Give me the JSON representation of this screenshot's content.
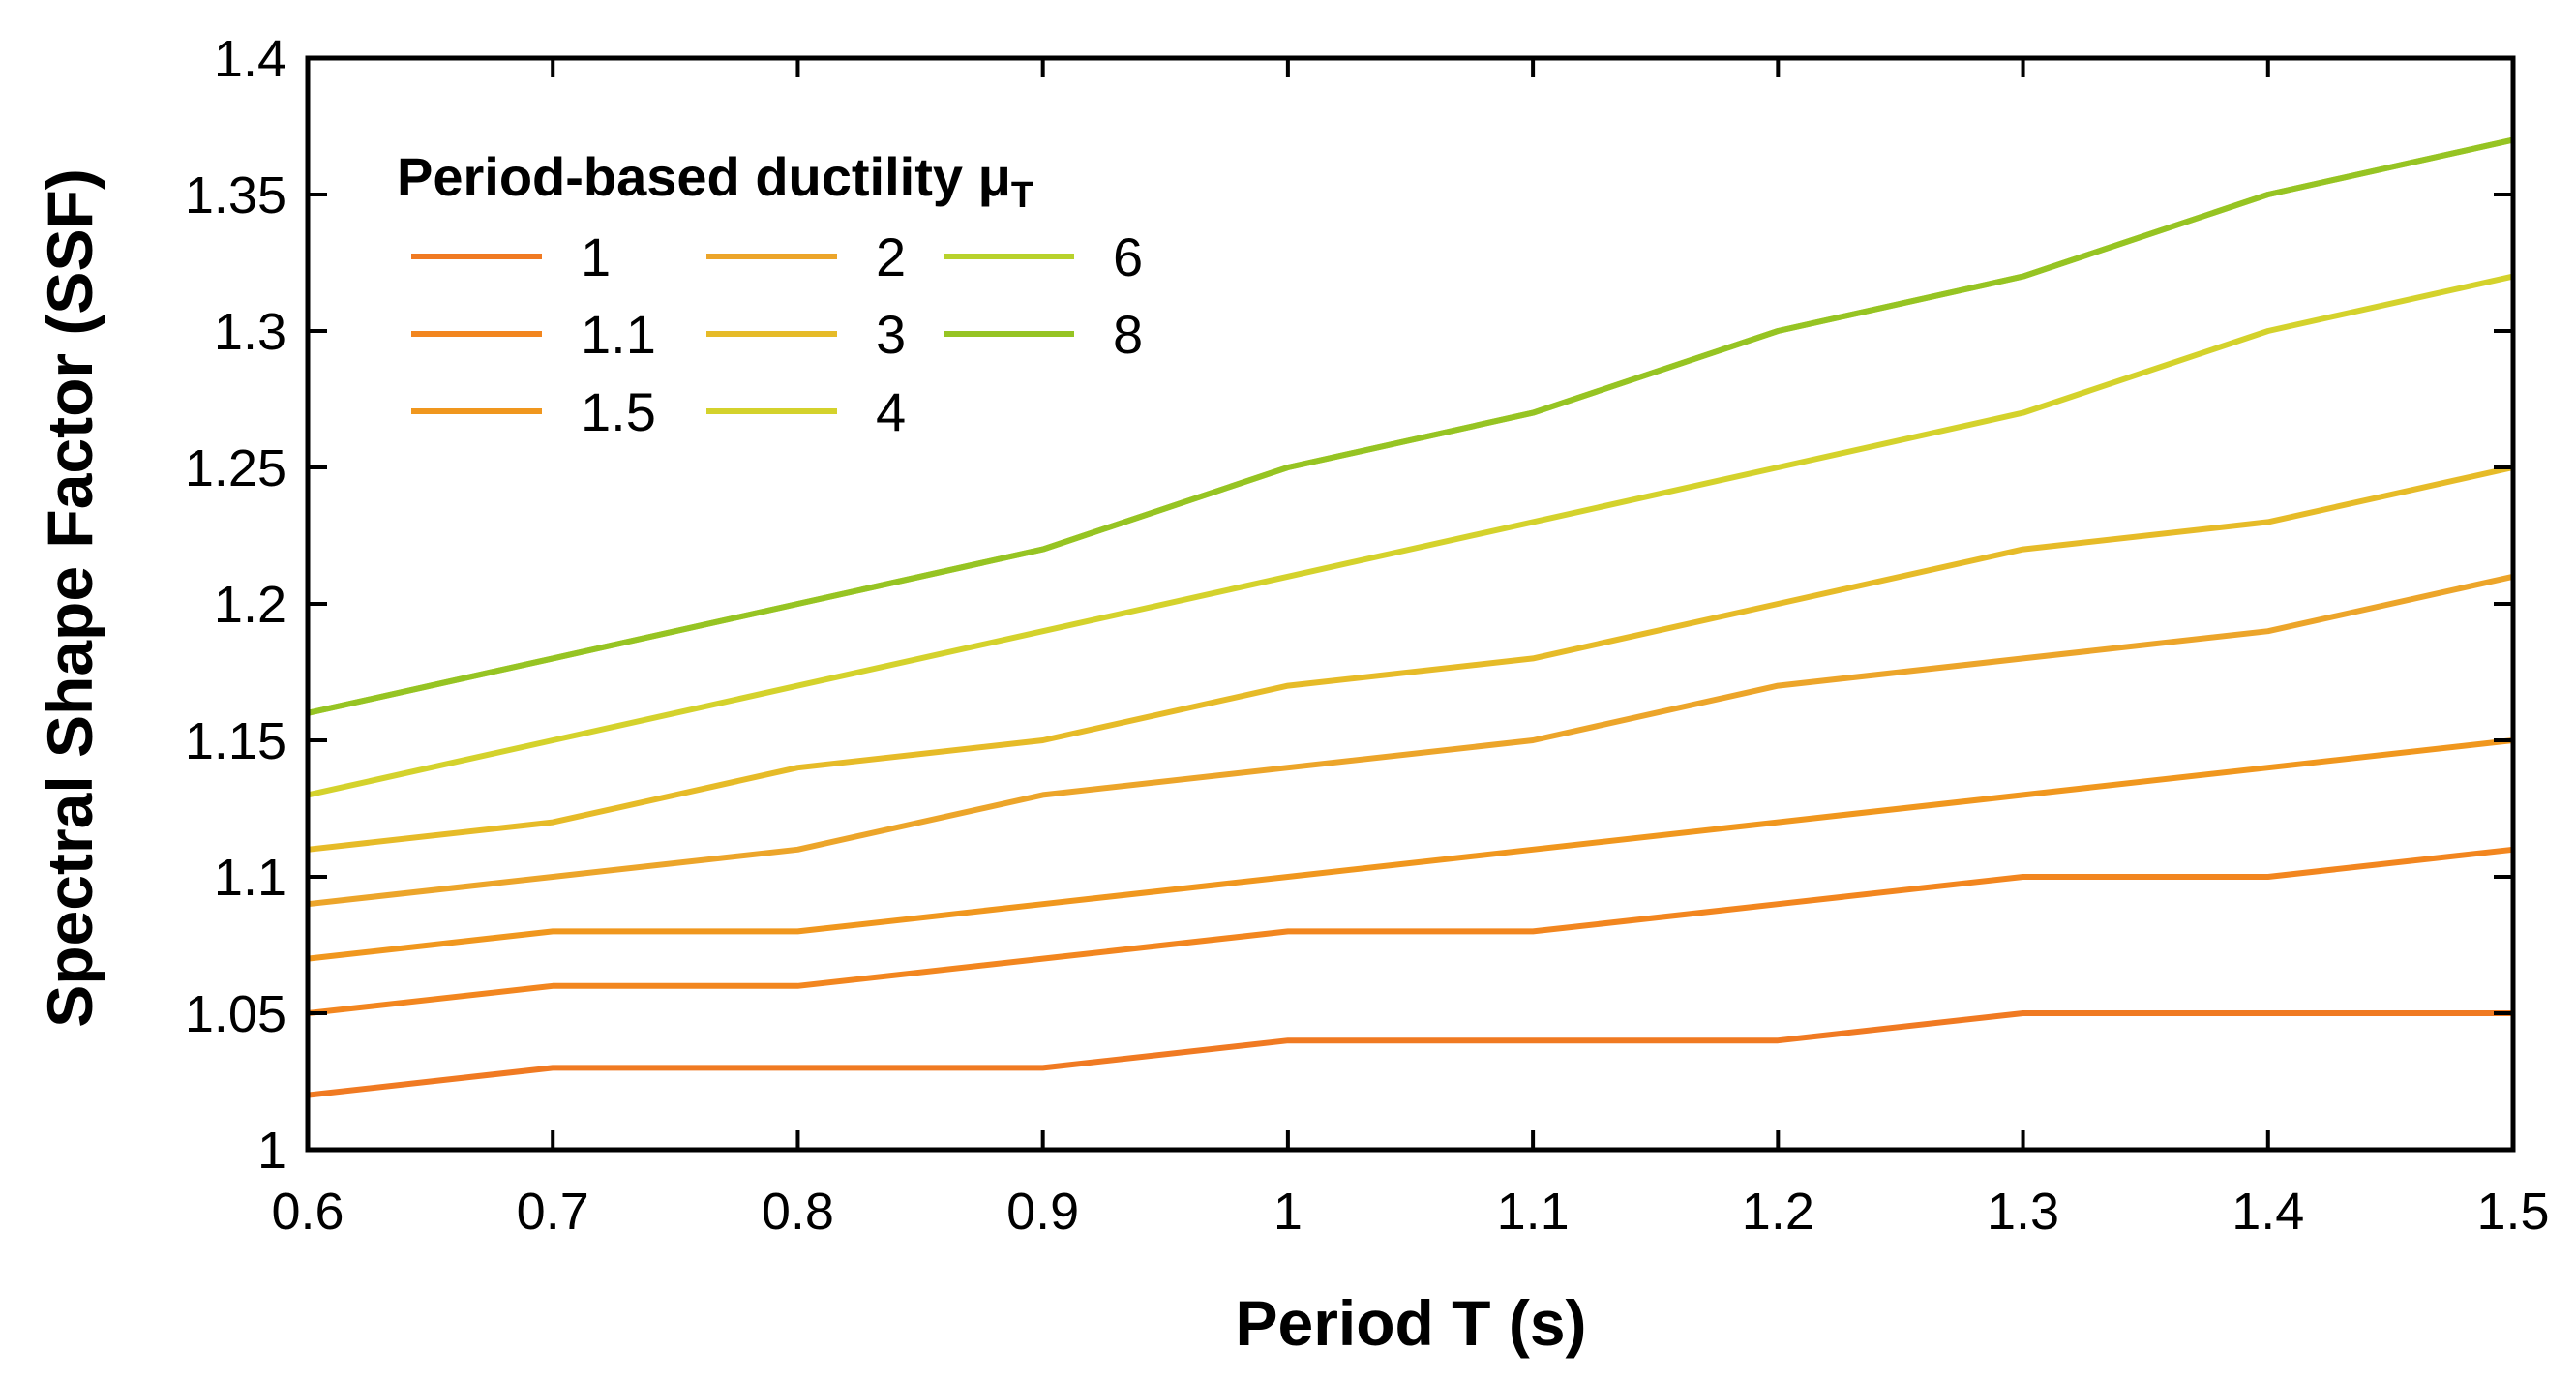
{
  "chart_data": {
    "type": "line",
    "title": "",
    "xlabel": "Period T (s)",
    "ylabel": "Spectral Shape Factor (SSF)",
    "xlim": [
      0.6,
      1.5
    ],
    "ylim": [
      1.0,
      1.4
    ],
    "xticks": [
      0.6,
      0.7,
      0.8,
      0.9,
      1.0,
      1.1,
      1.2,
      1.3,
      1.4,
      1.5
    ],
    "xtick_labels": [
      "0.6",
      "0.7",
      "0.8",
      "0.9",
      "1",
      "1.1",
      "1.2",
      "1.3",
      "1.4",
      "1.5"
    ],
    "yticks": [
      1.0,
      1.05,
      1.1,
      1.15,
      1.2,
      1.25,
      1.3,
      1.35,
      1.4
    ],
    "ytick_labels": [
      "1",
      "1.05",
      "1.1",
      "1.15",
      "1.2",
      "1.25",
      "1.3",
      "1.35",
      "1.4"
    ],
    "grid": false,
    "legend": {
      "title_main": "Period-based ductility ",
      "title_symbol": "μ",
      "title_subscript": "T",
      "placement": "top-left"
    },
    "x": [
      0.6,
      0.7,
      0.8,
      0.9,
      1.0,
      1.1,
      1.2,
      1.3,
      1.4,
      1.5
    ],
    "series": [
      {
        "name": "1",
        "color": "#f07a22",
        "values": [
          1.02,
          1.03,
          1.03,
          1.03,
          1.04,
          1.04,
          1.04,
          1.05,
          1.05,
          1.05
        ]
      },
      {
        "name": "1.1",
        "color": "#f2861f",
        "values": [
          1.05,
          1.06,
          1.06,
          1.07,
          1.08,
          1.08,
          1.09,
          1.1,
          1.1,
          1.11
        ]
      },
      {
        "name": "1.5",
        "color": "#f0971e",
        "values": [
          1.07,
          1.08,
          1.08,
          1.09,
          1.1,
          1.11,
          1.12,
          1.13,
          1.14,
          1.15
        ]
      },
      {
        "name": "2",
        "color": "#eca52a",
        "values": [
          1.09,
          1.1,
          1.11,
          1.13,
          1.14,
          1.15,
          1.17,
          1.18,
          1.19,
          1.21
        ]
      },
      {
        "name": "3",
        "color": "#e6bb28",
        "values": [
          1.11,
          1.12,
          1.14,
          1.15,
          1.17,
          1.18,
          1.2,
          1.22,
          1.23,
          1.25
        ]
      },
      {
        "name": "4",
        "color": "#d4d22c",
        "values": [
          1.13,
          1.15,
          1.17,
          1.19,
          1.21,
          1.23,
          1.25,
          1.27,
          1.3,
          1.32
        ]
      },
      {
        "name": "6",
        "color": "#b8d22c",
        "values": [
          1.16,
          1.18,
          1.2,
          1.22,
          1.25,
          1.27,
          1.3,
          1.32,
          1.35,
          1.37
        ]
      },
      {
        "name": "8",
        "color": "#96c423",
        "values": [
          1.16,
          1.18,
          1.2,
          1.22,
          1.25,
          1.27,
          1.3,
          1.32,
          1.35,
          1.37
        ]
      }
    ]
  }
}
